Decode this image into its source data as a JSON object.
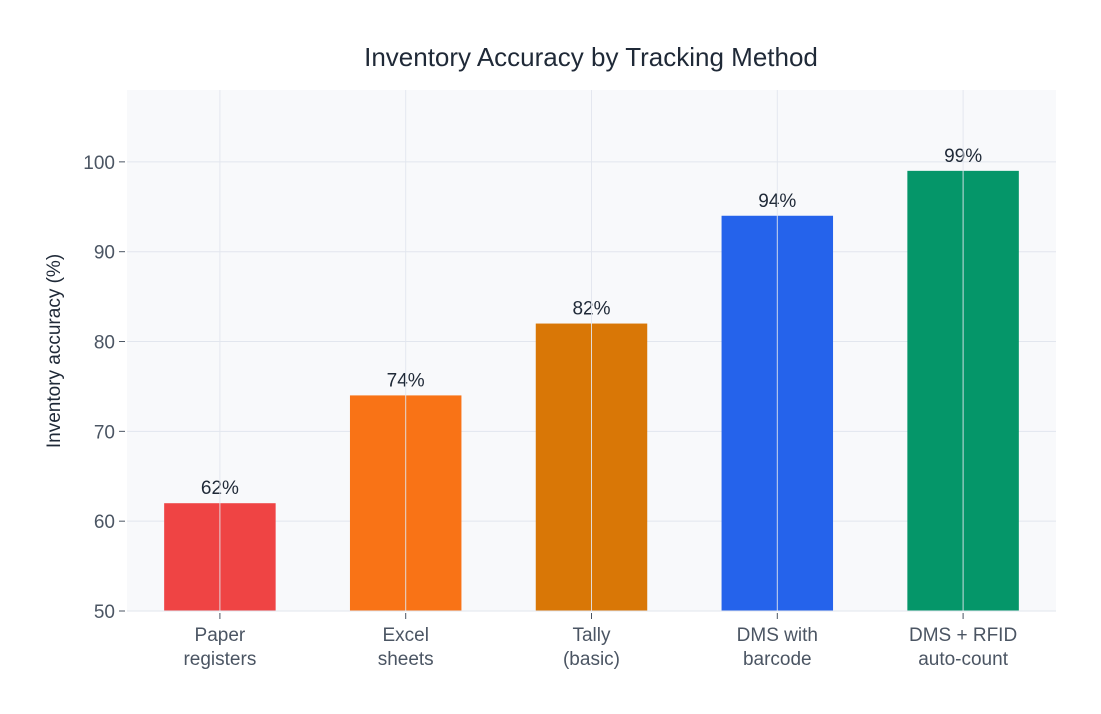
{
  "chart_data": {
    "type": "bar",
    "title": "Inventory Accuracy by Tracking Method",
    "xlabel": "",
    "ylabel": "Inventory accuracy (%)",
    "categories": [
      [
        "Paper",
        "registers"
      ],
      [
        "Excel",
        "sheets"
      ],
      [
        "Tally",
        "(basic)"
      ],
      [
        "DMS with",
        "barcode"
      ],
      [
        "DMS + RFID",
        "auto-count"
      ]
    ],
    "values": [
      62,
      74,
      82,
      94,
      99
    ],
    "data_labels": [
      "62%",
      "74%",
      "82%",
      "94%",
      "99%"
    ],
    "colors": [
      "#ef4444",
      "#f97316",
      "#d97706",
      "#2563eb",
      "#059669"
    ],
    "ylim": [
      50,
      108
    ],
    "yticks": [
      50,
      60,
      70,
      80,
      90,
      100
    ],
    "grid": true,
    "plot_background": "#f8f9fb"
  }
}
